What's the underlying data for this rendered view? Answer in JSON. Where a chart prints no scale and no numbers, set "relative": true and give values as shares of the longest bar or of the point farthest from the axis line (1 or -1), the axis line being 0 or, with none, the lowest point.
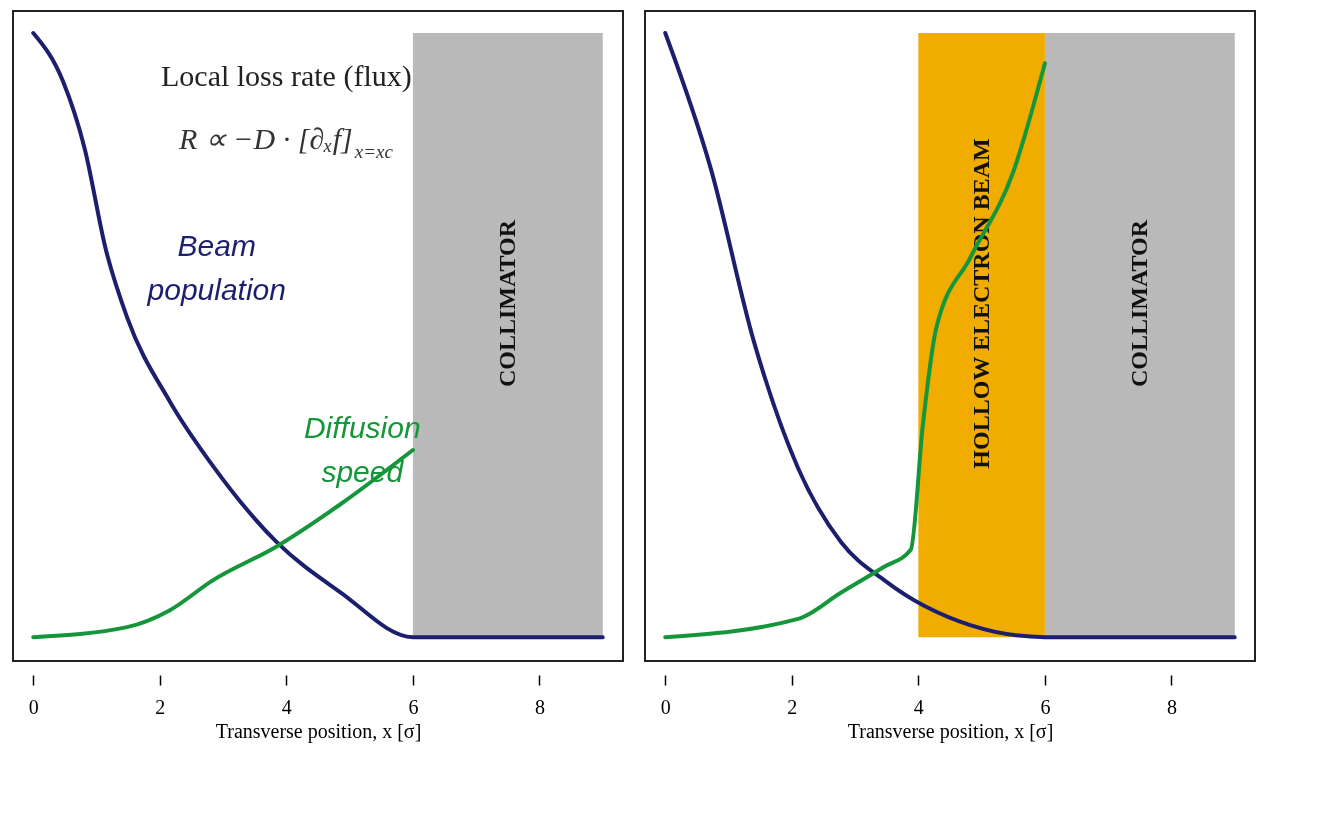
{
  "chart_data": [
    {
      "type": "line",
      "relative": true,
      "xlabel": "Transverse position, x [σ]",
      "xlim": [
        -0.32,
        9.32
      ],
      "xticks": [
        0,
        2,
        4,
        6,
        8
      ],
      "series": [
        {
          "name": "Beam population",
          "color": "#1c1f6e",
          "x": [
            0,
            0.47,
            0.81,
            1.15,
            1.48,
            2.16,
            2.83,
            3.84,
            4.86,
            6,
            9
          ],
          "values": [
            1,
            0.923,
            0.817,
            0.654,
            0.548,
            0.413,
            0.312,
            0.19,
            0.109,
            0.038,
            0.038
          ]
        },
        {
          "name": "Diffusion speed",
          "color": "#16963a",
          "x": [
            0,
            1.48,
            2.16,
            2.83,
            3.84,
            4.86,
            6
          ],
          "values": [
            0.038,
            0.054,
            0.081,
            0.128,
            0.182,
            0.25,
            0.336
          ]
        }
      ],
      "bands": [
        {
          "axis": "x",
          "from": 6,
          "to": 9,
          "label": "COLLIMATOR",
          "color": "#b9b9b9"
        }
      ],
      "annotations": [
        "Local loss rate (flux)",
        "R ∝ −D · [∂ₓf]$_{x=xc}$"
      ]
    },
    {
      "type": "line",
      "relative": true,
      "xlabel": "Transverse position, x [σ]",
      "xlim": [
        -0.32,
        9.32
      ],
      "xticks": [
        0,
        2,
        4,
        6,
        8
      ],
      "series": [
        {
          "color": "#1c1f6e",
          "x": [
            0,
            0.72,
            1.4,
            2.1,
            2.78,
            3.47,
            4.09,
            6,
            9
          ],
          "values": [
            1,
            0.784,
            0.509,
            0.307,
            0.189,
            0.128,
            0.088,
            0.038,
            0.038
          ]
        },
        {
          "color": "#16963a",
          "x": [
            0,
            2.1,
            2.78,
            3.46,
            3.88,
            4.07,
            4.28,
            4.83,
            5.5,
            6
          ],
          "values": [
            0.038,
            0.067,
            0.109,
            0.15,
            0.177,
            0.375,
            0.529,
            0.644,
            0.779,
            0.952
          ]
        }
      ],
      "bands": [
        {
          "axis": "x",
          "from": 4,
          "to": 6,
          "label": "HOLLOW ELECTRON BEAM",
          "color": "#f0ad00"
        },
        {
          "axis": "x",
          "from": 6,
          "to": 9,
          "label": "COLLIMATOR",
          "color": "#b9b9b9"
        }
      ]
    }
  ]
}
